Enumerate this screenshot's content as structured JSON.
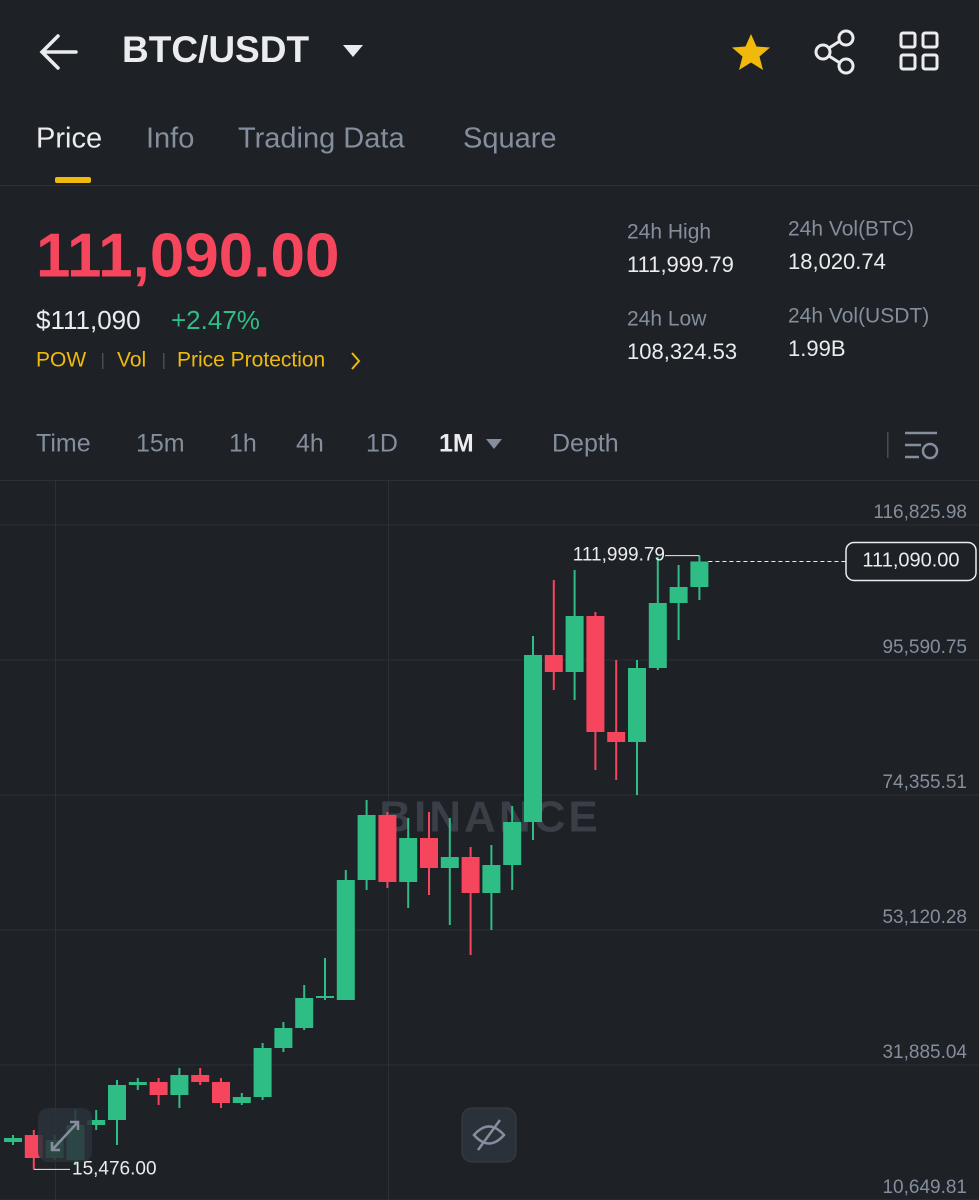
{
  "header": {
    "pair": "BTC/USDT"
  },
  "tabs": [
    "Price",
    "Info",
    "Trading Data",
    "Square"
  ],
  "price": {
    "last": "111,090.00",
    "usd": "$111,090",
    "change": "+2.47%",
    "tags": [
      "POW",
      "Vol",
      "Price Protection"
    ]
  },
  "stats": [
    {
      "label": "24h High",
      "value": "111,999.79"
    },
    {
      "label": "24h Vol(BTC)",
      "value": "18,020.74"
    },
    {
      "label": "24h Low",
      "value": "108,324.53"
    },
    {
      "label": "24h Vol(USDT)",
      "value": "1.99B"
    }
  ],
  "intervals": [
    "Time",
    "15m",
    "1h",
    "4h",
    "1D",
    "1M",
    "Depth"
  ],
  "chart_data": {
    "type": "candlestick",
    "watermark": "BINANCE",
    "up_color": "#2ebd85",
    "down_color": "#f6465d",
    "ylim": [
      10649.81,
      123904
    ],
    "yticks": [
      {
        "value": 116825.98,
        "label": "116,825.98"
      },
      {
        "value": 95590.75,
        "label": "95,590.75"
      },
      {
        "value": 74355.51,
        "label": "74,355.51"
      },
      {
        "value": 53120.28,
        "label": "53,120.28"
      },
      {
        "value": 31885.04,
        "label": "31,885.04"
      },
      {
        "value": 10649.81,
        "label": "10,649.81"
      }
    ],
    "grid": true,
    "open": [
      19772,
      20873,
      17255,
      16940,
      22446,
      23232,
      28738,
      29210,
      27165,
      30311,
      29210,
      25907,
      26850,
      34558,
      37704,
      42423,
      42108,
      60984,
      71209,
      60670,
      67591,
      62872,
      64602,
      58940,
      63344,
      70108,
      96377,
      93703,
      102512,
      84265,
      82692,
      94332,
      104557,
      107073
    ],
    "high": [
      20873,
      21659,
      20873,
      24805,
      24805,
      29524,
      29839,
      29839,
      31412,
      31412,
      29839,
      27480,
      35345,
      38648,
      44468,
      48715,
      62557,
      73568,
      71681,
      70737,
      71681,
      70737,
      66175,
      66490,
      72625,
      99366,
      108174,
      109747,
      103141,
      95590,
      95590,
      111792,
      110534,
      111999.79
    ],
    "low": [
      19300,
      15476,
      16940,
      16154,
      21659,
      19300,
      27951,
      25592,
      25120,
      28738,
      25120,
      25592,
      26378,
      33929,
      37389,
      42108,
      42108,
      59411,
      59726,
      56580,
      58625,
      53906,
      49187,
      53119,
      59411,
      67276,
      90871,
      89298,
      78287,
      76714,
      74355,
      94017,
      98736,
      105028
    ],
    "close": [
      20401,
      17255,
      20086,
      22446,
      23232,
      28738,
      29210,
      27165,
      30311,
      29210,
      25907,
      26850,
      34558,
      37704,
      42423,
      42738,
      60984,
      71209,
      60670,
      67591,
      62872,
      64602,
      58940,
      63344,
      70108,
      96377,
      93703,
      102512,
      84265,
      82692,
      94332,
      104557,
      107073,
      111090
    ],
    "high_marker": {
      "value": 111999.79,
      "label": "111,999.79"
    },
    "low_marker": {
      "value": 15476,
      "label": "15,476.00"
    },
    "last_marker": {
      "value": 111090,
      "label": "111,090.00"
    }
  }
}
